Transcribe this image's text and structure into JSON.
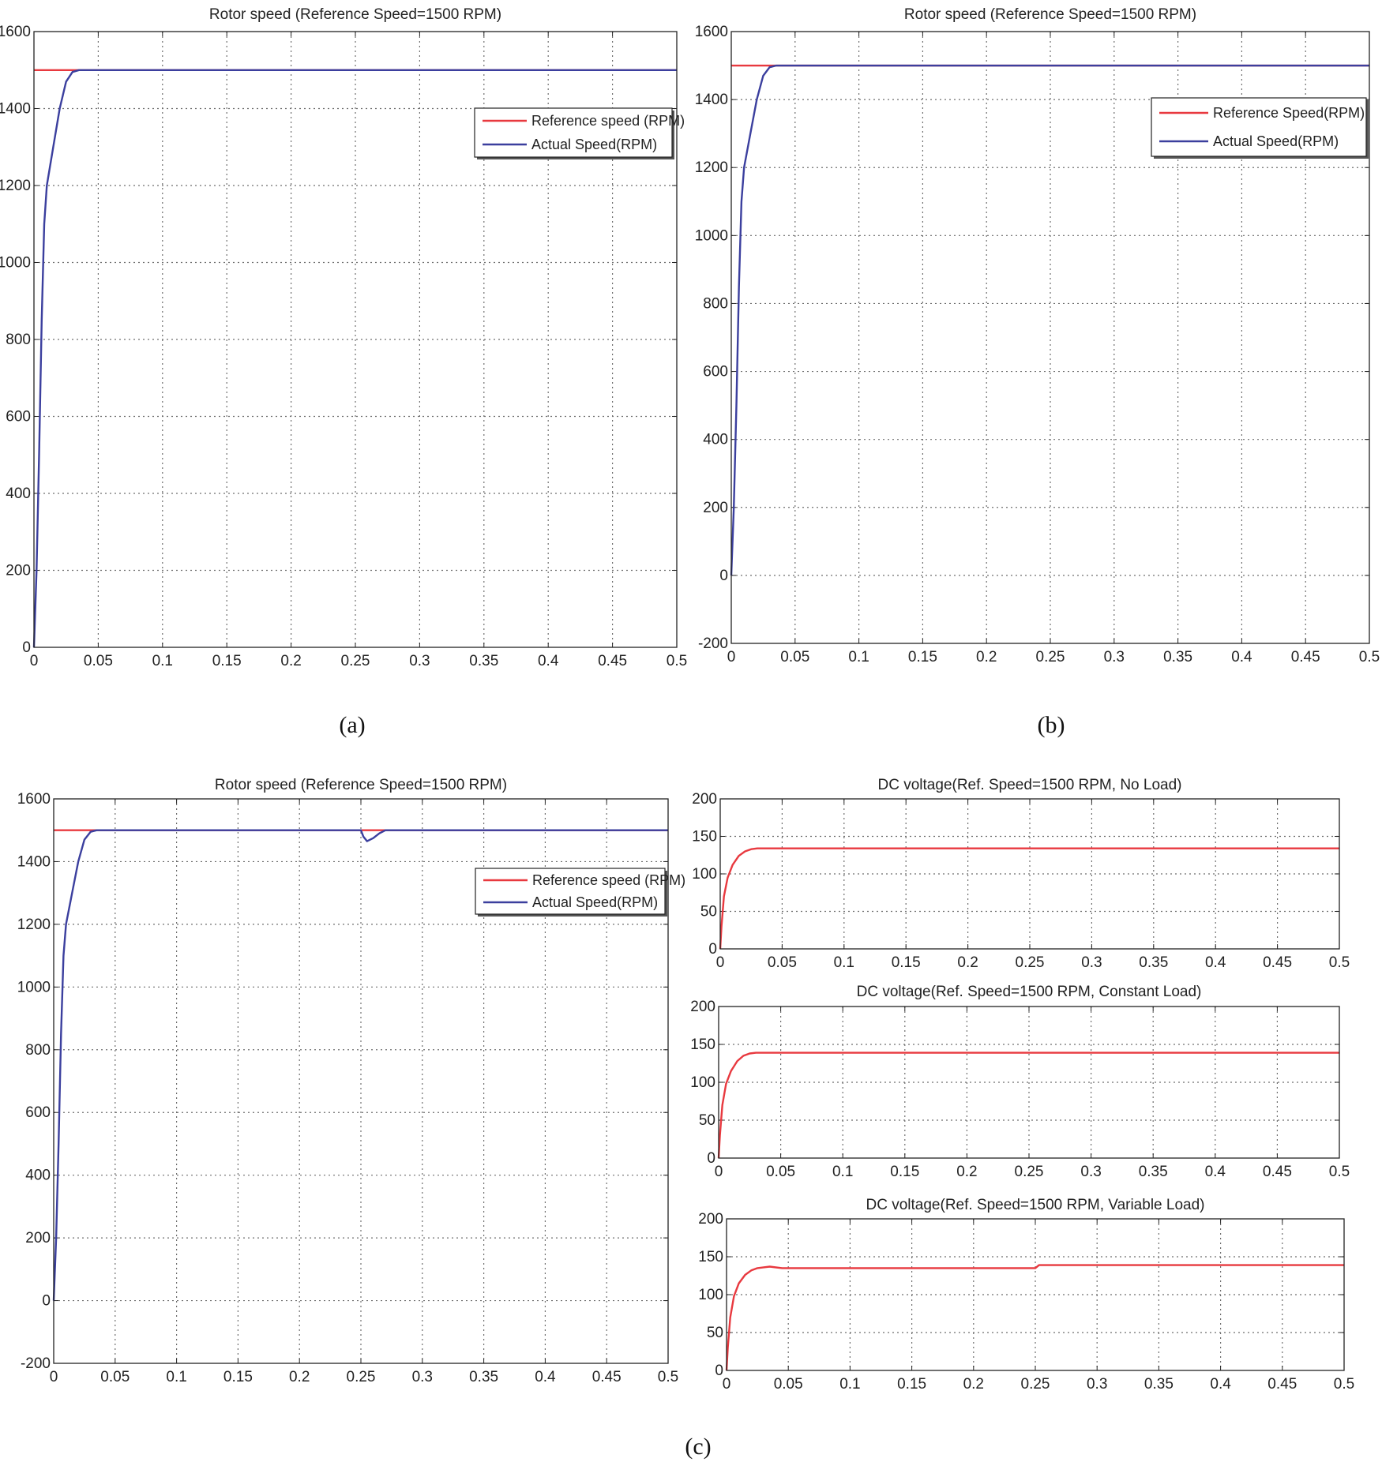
{
  "figure": {
    "captions": [
      "(a)",
      "(b)",
      "(c)"
    ]
  },
  "chart_data": [
    {
      "id": "a",
      "type": "line",
      "title": "Rotor speed (Reference Speed=1500 RPM)",
      "xlim": [
        0,
        0.5
      ],
      "ylim": [
        0,
        1600
      ],
      "xticks": [
        "0",
        "0.05",
        "0.1",
        "0.15",
        "0.2",
        "0.25",
        "0.3",
        "0.35",
        "0.4",
        "0.45",
        "0.5"
      ],
      "yticks": [
        "0",
        "200",
        "400",
        "600",
        "800",
        "1000",
        "1200",
        "1400",
        "1600"
      ],
      "grid": true,
      "legend": "top-right",
      "series": [
        {
          "name": "Reference  speed (RPM)",
          "color": "#e8393f",
          "x": [
            0,
            0.5
          ],
          "y": [
            1500,
            1500
          ]
        },
        {
          "name": "Actual Speed(RPM)",
          "color": "#3b3f9e",
          "x": [
            0,
            0.002,
            0.004,
            0.006,
            0.008,
            0.01,
            0.015,
            0.02,
            0.025,
            0.03,
            0.035,
            0.5
          ],
          "y": [
            0,
            200,
            500,
            850,
            1100,
            1200,
            1300,
            1400,
            1470,
            1495,
            1500,
            1500
          ]
        }
      ]
    },
    {
      "id": "b",
      "type": "line",
      "title": "Rotor speed (Reference Speed=1500 RPM)",
      "xlim": [
        0,
        0.5
      ],
      "ylim": [
        -200,
        1600
      ],
      "xticks": [
        "0",
        "0.05",
        "0.1",
        "0.15",
        "0.2",
        "0.25",
        "0.3",
        "0.35",
        "0.4",
        "0.45",
        "0.5"
      ],
      "yticks": [
        "-200",
        "0",
        "200",
        "400",
        "600",
        "800",
        "1000",
        "1200",
        "1400",
        "1600"
      ],
      "grid": true,
      "legend": "top-right",
      "series": [
        {
          "name": "Reference Speed(RPM)",
          "color": "#e8393f",
          "x": [
            0,
            0.5
          ],
          "y": [
            1500,
            1500
          ]
        },
        {
          "name": "Actual Speed(RPM)",
          "color": "#3b3f9e",
          "x": [
            0,
            0.002,
            0.004,
            0.006,
            0.008,
            0.01,
            0.015,
            0.02,
            0.025,
            0.03,
            0.035,
            0.5
          ],
          "y": [
            0,
            200,
            500,
            850,
            1100,
            1200,
            1300,
            1400,
            1470,
            1495,
            1500,
            1500
          ]
        }
      ]
    },
    {
      "id": "c1",
      "type": "line",
      "title": "Rotor speed (Reference Speed=1500 RPM)",
      "xlim": [
        0,
        0.5
      ],
      "ylim": [
        -200,
        1600
      ],
      "xticks": [
        "0",
        "0.05",
        "0.1",
        "0.15",
        "0.2",
        "0.25",
        "0.3",
        "0.35",
        "0.4",
        "0.45",
        "0.5"
      ],
      "yticks": [
        "-200",
        "0",
        "200",
        "400",
        "600",
        "800",
        "1000",
        "1200",
        "1400",
        "1600"
      ],
      "grid": true,
      "legend": "top-right",
      "series": [
        {
          "name": "Reference  speed (RPM)",
          "color": "#e8393f",
          "x": [
            0,
            0.5
          ],
          "y": [
            1500,
            1500
          ]
        },
        {
          "name": "Actual Speed(RPM)",
          "color": "#3b3f9e",
          "x": [
            0,
            0.002,
            0.004,
            0.006,
            0.008,
            0.01,
            0.015,
            0.02,
            0.025,
            0.03,
            0.035,
            0.25,
            0.252,
            0.255,
            0.26,
            0.265,
            0.27,
            0.5
          ],
          "y": [
            0,
            200,
            500,
            850,
            1100,
            1200,
            1300,
            1400,
            1470,
            1495,
            1500,
            1500,
            1480,
            1465,
            1475,
            1490,
            1500,
            1500
          ]
        }
      ]
    },
    {
      "id": "c2",
      "type": "line",
      "title": "DC voltage(Ref. Speed=1500 RPM, No Load)",
      "xlim": [
        0,
        0.5
      ],
      "ylim": [
        0,
        200
      ],
      "xticks": [
        "0",
        "0.05",
        "0.1",
        "0.15",
        "0.2",
        "0.25",
        "0.3",
        "0.35",
        "0.4",
        "0.45",
        "0.5"
      ],
      "yticks": [
        "0",
        "50",
        "100",
        "150",
        "200"
      ],
      "grid": true,
      "series": [
        {
          "color": "#e8393f",
          "x": [
            0,
            0.001,
            0.003,
            0.006,
            0.01,
            0.015,
            0.02,
            0.025,
            0.03,
            0.5
          ],
          "y": [
            0,
            30,
            70,
            95,
            112,
            124,
            130,
            133,
            134,
            134
          ]
        }
      ]
    },
    {
      "id": "c3",
      "type": "line",
      "title": "DC voltage(Ref. Speed=1500 RPM, Constant Load)",
      "xlim": [
        0,
        0.5
      ],
      "ylim": [
        0,
        200
      ],
      "xticks": [
        "0",
        "0.05",
        "0.1",
        "0.15",
        "0.2",
        "0.25",
        "0.3",
        "0.35",
        "0.4",
        "0.45",
        "0.5"
      ],
      "yticks": [
        "0",
        "50",
        "100",
        "150",
        "200"
      ],
      "grid": true,
      "series": [
        {
          "color": "#e8393f",
          "x": [
            0,
            0.001,
            0.003,
            0.006,
            0.01,
            0.015,
            0.02,
            0.025,
            0.03,
            0.5
          ],
          "y": [
            0,
            30,
            70,
            98,
            115,
            128,
            135,
            138,
            139,
            139
          ]
        }
      ]
    },
    {
      "id": "c4",
      "type": "line",
      "title": "DC voltage(Ref. Speed=1500 RPM, Variable Load)",
      "xlim": [
        0,
        0.5
      ],
      "ylim": [
        0,
        200
      ],
      "xticks": [
        "0",
        "0.05",
        "0.1",
        "0.15",
        "0.2",
        "0.25",
        "0.3",
        "0.35",
        "0.4",
        "0.45",
        "0.5"
      ],
      "yticks": [
        "0",
        "50",
        "100",
        "150",
        "200"
      ],
      "grid": true,
      "series": [
        {
          "color": "#e8393f",
          "x": [
            0,
            0.001,
            0.003,
            0.006,
            0.01,
            0.015,
            0.02,
            0.025,
            0.03,
            0.035,
            0.045,
            0.25,
            0.253,
            0.5
          ],
          "y": [
            0,
            30,
            70,
            98,
            115,
            126,
            132,
            135,
            136,
            137,
            135,
            135,
            139,
            139
          ]
        }
      ]
    }
  ]
}
